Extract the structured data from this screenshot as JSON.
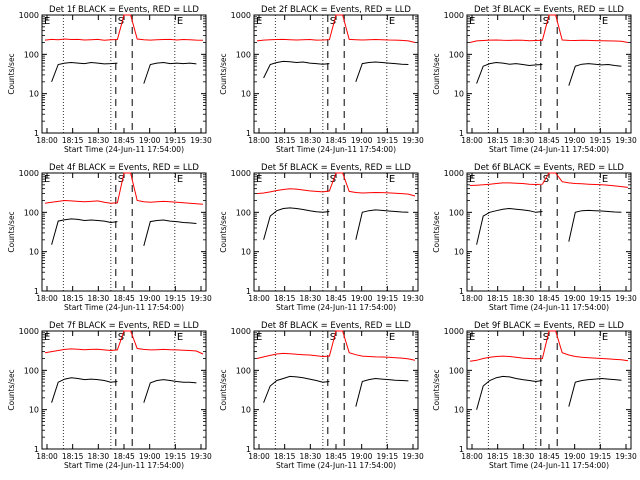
{
  "panel_count": 9,
  "chart_data": [
    {
      "type": "line",
      "title": "Det 1f BLACK = Events, RED = LLD",
      "xlabel": "Start Time (24-Jun-11 17:54:00)",
      "ylabel": "Counts/sec",
      "ylim": [
        1,
        1000
      ],
      "y_scale": "log",
      "x_ticks": [
        "18:00",
        "18:15",
        "18:30",
        "18:45",
        "19:00",
        "19:15",
        "19:30"
      ],
      "y_ticks": [
        "1",
        "10",
        "100",
        "1000"
      ],
      "annotations": [
        "E",
        "S",
        "E"
      ],
      "grid": false,
      "series": [
        {
          "name": "RED = LLD",
          "color": "#ff0000",
          "values": [
            230,
            240,
            235,
            245,
            238,
            240,
            232,
            236,
            240,
            228,
            235,
            238,
            1000,
            1000,
            245,
            236,
            230,
            236,
            238,
            240,
            232,
            238,
            235,
            230,
            228
          ]
        },
        {
          "name": "BLACK = Events",
          "color": "#000000",
          "values": [
            null,
            20,
            55,
            60,
            62,
            60,
            58,
            62,
            60,
            57,
            58,
            60,
            null,
            null,
            null,
            18,
            55,
            60,
            62,
            58,
            60,
            58,
            60,
            57,
            null
          ]
        }
      ]
    },
    {
      "type": "line",
      "title": "Det 2f BLACK = Events, RED = LLD",
      "xlabel": "Start Time (24-Jun-11 17:54:00)",
      "ylabel": "Counts/sec",
      "ylim": [
        1,
        1000
      ],
      "y_scale": "log",
      "x_ticks": [
        "18:00",
        "18:15",
        "18:30",
        "18:45",
        "19:00",
        "19:15",
        "19:30"
      ],
      "y_ticks": [
        "1",
        "10",
        "100",
        "1000"
      ],
      "annotations": [
        "E",
        "S",
        "E"
      ],
      "grid": false,
      "series": [
        {
          "name": "RED = LLD",
          "color": "#ff0000",
          "values": [
            220,
            230,
            235,
            238,
            240,
            236,
            232,
            235,
            238,
            230,
            232,
            235,
            1000,
            1000,
            240,
            235,
            232,
            236,
            238,
            236,
            232,
            230,
            226,
            220,
            200
          ]
        },
        {
          "name": "BLACK = Events",
          "color": "#000000",
          "values": [
            null,
            25,
            55,
            62,
            66,
            65,
            62,
            64,
            60,
            58,
            56,
            58,
            null,
            null,
            null,
            20,
            58,
            62,
            64,
            62,
            60,
            58,
            56,
            55,
            null
          ]
        }
      ]
    },
    {
      "type": "line",
      "title": "Det 3f BLACK = Events, RED = LLD",
      "xlabel": "Start Time (24-Jun-11 17:54:00)",
      "ylabel": "Counts/sec",
      "ylim": [
        1,
        1000
      ],
      "y_scale": "log",
      "x_ticks": [
        "18:00",
        "18:15",
        "18:30",
        "18:45",
        "19:00",
        "19:15",
        "19:30"
      ],
      "y_ticks": [
        "1",
        "10",
        "100",
        "1000"
      ],
      "annotations": [
        "E",
        "S",
        "E"
      ],
      "grid": false,
      "series": [
        {
          "name": "RED = LLD",
          "color": "#ff0000",
          "values": [
            200,
            220,
            225,
            230,
            232,
            228,
            226,
            230,
            228,
            222,
            225,
            228,
            1000,
            1000,
            232,
            226,
            225,
            228,
            226,
            224,
            222,
            220,
            218,
            215,
            200
          ]
        },
        {
          "name": "BLACK = Events",
          "color": "#000000",
          "values": [
            null,
            18,
            50,
            58,
            62,
            60,
            56,
            58,
            55,
            52,
            54,
            55,
            null,
            null,
            null,
            16,
            50,
            56,
            58,
            56,
            54,
            55,
            52,
            50,
            null
          ]
        }
      ]
    },
    {
      "type": "line",
      "title": "Det 4f BLACK = Events, RED = LLD",
      "xlabel": "Start Time (24-Jun-11 17:54:00)",
      "ylabel": "Counts/sec",
      "ylim": [
        1,
        1000
      ],
      "y_scale": "log",
      "x_ticks": [
        "18:00",
        "18:15",
        "18:30",
        "18:45",
        "19:00",
        "19:15",
        "19:30"
      ],
      "y_ticks": [
        "1",
        "10",
        "100",
        "1000"
      ],
      "annotations": [
        "E",
        "S",
        "E"
      ],
      "grid": false,
      "series": [
        {
          "name": "RED = LLD",
          "color": "#ff0000",
          "values": [
            170,
            180,
            190,
            200,
            195,
            190,
            185,
            190,
            195,
            180,
            170,
            175,
            1000,
            1000,
            200,
            185,
            180,
            185,
            190,
            185,
            180,
            175,
            170,
            165,
            160
          ]
        },
        {
          "name": "BLACK = Events",
          "color": "#000000",
          "values": [
            null,
            15,
            60,
            65,
            68,
            66,
            62,
            64,
            62,
            60,
            55,
            58,
            null,
            null,
            null,
            14,
            58,
            62,
            64,
            60,
            58,
            55,
            54,
            52,
            null
          ]
        }
      ]
    },
    {
      "type": "line",
      "title": "Det 5f BLACK = Events, RED = LLD",
      "xlabel": "Start Time (24-Jun-11 17:54:00)",
      "ylabel": "Counts/sec",
      "ylim": [
        1,
        1000
      ],
      "y_scale": "log",
      "x_ticks": [
        "18:00",
        "18:15",
        "18:30",
        "18:45",
        "19:00",
        "19:15",
        "19:30"
      ],
      "y_ticks": [
        "1",
        "10",
        "100",
        "1000"
      ],
      "annotations": [
        "E",
        "S",
        "E"
      ],
      "grid": false,
      "series": [
        {
          "name": "RED = LLD",
          "color": "#ff0000",
          "values": [
            300,
            310,
            330,
            360,
            380,
            400,
            390,
            370,
            350,
            340,
            330,
            350,
            1000,
            1000,
            340,
            320,
            310,
            315,
            320,
            318,
            312,
            305,
            300,
            290,
            260
          ]
        },
        {
          "name": "BLACK = Events",
          "color": "#000000",
          "values": [
            null,
            20,
            80,
            110,
            125,
            130,
            125,
            118,
            110,
            104,
            100,
            105,
            null,
            null,
            null,
            20,
            100,
            110,
            115,
            112,
            108,
            105,
            102,
            100,
            null
          ]
        }
      ]
    },
    {
      "type": "line",
      "title": "Det 6f BLACK = Events, RED = LLD",
      "xlabel": "Start Time (24-Jun-11 17:54:00)",
      "ylabel": "Counts/sec",
      "ylim": [
        1,
        1000
      ],
      "y_scale": "log",
      "x_ticks": [
        "18:00",
        "18:15",
        "18:30",
        "18:45",
        "19:00",
        "19:15",
        "19:30"
      ],
      "y_ticks": [
        "1",
        "10",
        "100",
        "1000"
      ],
      "annotations": [
        "E",
        "S",
        "E"
      ],
      "grid": false,
      "series": [
        {
          "name": "RED = LLD",
          "color": "#ff0000",
          "values": [
            480,
            490,
            500,
            520,
            540,
            560,
            560,
            550,
            540,
            520,
            510,
            520,
            1000,
            1000,
            600,
            560,
            540,
            530,
            520,
            510,
            500,
            490,
            470,
            450,
            430
          ]
        },
        {
          "name": "BLACK = Events",
          "color": "#000000",
          "values": [
            null,
            15,
            80,
            100,
            110,
            120,
            125,
            120,
            115,
            110,
            100,
            105,
            null,
            null,
            null,
            18,
            100,
            110,
            112,
            110,
            108,
            105,
            102,
            100,
            null
          ]
        }
      ]
    },
    {
      "type": "line",
      "title": "Det 7f BLACK = Events, RED = LLD",
      "xlabel": "Start Time (24-Jun-11 17:54:00)",
      "ylabel": "Counts/sec",
      "ylim": [
        1,
        1000
      ],
      "y_scale": "log",
      "x_ticks": [
        "18:00",
        "18:15",
        "18:30",
        "18:45",
        "19:00",
        "19:15",
        "19:30"
      ],
      "y_ticks": [
        "1",
        "10",
        "100",
        "1000"
      ],
      "annotations": [
        "E",
        "S",
        "E"
      ],
      "grid": false,
      "series": [
        {
          "name": "RED = LLD",
          "color": "#ff0000",
          "values": [
            280,
            300,
            320,
            340,
            350,
            345,
            335,
            340,
            345,
            330,
            320,
            330,
            1000,
            1000,
            360,
            340,
            330,
            335,
            340,
            335,
            330,
            325,
            320,
            310,
            260
          ]
        },
        {
          "name": "BLACK = Events",
          "color": "#000000",
          "values": [
            null,
            15,
            50,
            60,
            65,
            62,
            58,
            60,
            58,
            55,
            50,
            52,
            null,
            null,
            null,
            15,
            48,
            55,
            58,
            55,
            52,
            50,
            50,
            48,
            null
          ]
        }
      ]
    },
    {
      "type": "line",
      "title": "Det 8f BLACK = Events, RED = LLD",
      "xlabel": "Start Time (24-Jun-11 17:54:00)",
      "ylabel": "Counts/sec",
      "ylim": [
        1,
        1000
      ],
      "y_scale": "log",
      "x_ticks": [
        "18:00",
        "18:15",
        "18:30",
        "18:45",
        "19:00",
        "19:15",
        "19:30"
      ],
      "y_ticks": [
        "1",
        "10",
        "100",
        "1000"
      ],
      "annotations": [
        "E",
        "S",
        "E"
      ],
      "grid": false,
      "series": [
        {
          "name": "RED = LLD",
          "color": "#ff0000",
          "values": [
            200,
            220,
            240,
            260,
            270,
            265,
            255,
            250,
            245,
            235,
            225,
            230,
            1000,
            1000,
            280,
            250,
            230,
            225,
            220,
            218,
            215,
            210,
            205,
            195,
            180
          ]
        },
        {
          "name": "BLACK = Events",
          "color": "#000000",
          "values": [
            null,
            15,
            40,
            55,
            62,
            70,
            68,
            65,
            60,
            55,
            50,
            52,
            null,
            null,
            null,
            12,
            52,
            58,
            62,
            60,
            58,
            56,
            55,
            54,
            null
          ]
        }
      ]
    },
    {
      "type": "line",
      "title": "Det 9f BLACK = Events, RED = LLD",
      "xlabel": "Start Time (24-Jun-11 17:54:00)",
      "ylabel": "Counts/sec",
      "ylim": [
        1,
        1000
      ],
      "y_scale": "log",
      "x_ticks": [
        "18:00",
        "18:15",
        "18:30",
        "18:45",
        "19:00",
        "19:15",
        "19:30"
      ],
      "y_ticks": [
        "1",
        "10",
        "100",
        "1000"
      ],
      "annotations": [
        "E",
        "S",
        "E"
      ],
      "grid": false,
      "series": [
        {
          "name": "RED = LLD",
          "color": "#ff0000",
          "values": [
            170,
            180,
            200,
            215,
            225,
            230,
            225,
            215,
            205,
            200,
            195,
            200,
            1000,
            1000,
            280,
            245,
            225,
            215,
            210,
            205,
            200,
            195,
            190,
            185,
            175
          ]
        },
        {
          "name": "BLACK = Events",
          "color": "#000000",
          "values": [
            null,
            10,
            40,
            55,
            65,
            70,
            68,
            62,
            58,
            55,
            52,
            55,
            null,
            null,
            null,
            12,
            50,
            55,
            58,
            60,
            62,
            60,
            58,
            56,
            null
          ]
        }
      ]
    }
  ]
}
